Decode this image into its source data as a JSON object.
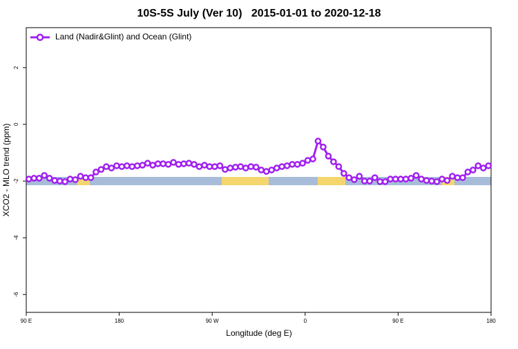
{
  "chart_data": {
    "type": "line",
    "title": "10S-5S July (Ver 10)   2015-01-01 to 2020-12-18",
    "x_label": "Longitude (deg E)",
    "y_label": "XCO2 - MLO trend (ppm)",
    "x": [
      92.5,
      97.5,
      102.5,
      107.5,
      112.5,
      117.5,
      122.5,
      127.5,
      132.5,
      137.5,
      142.5,
      147.5,
      152.5,
      157.5,
      162.5,
      167.5,
      172.5,
      177.5,
      182.5,
      187.5,
      192.5,
      197.5,
      202.5,
      207.5,
      212.5,
      217.5,
      222.5,
      227.5,
      232.5,
      237.5,
      242.5,
      247.5,
      252.5,
      257.5,
      262.5,
      267.5,
      272.5,
      277.5,
      282.5,
      287.5,
      292.5,
      297.5,
      302.5,
      307.5,
      312.5,
      317.5,
      322.5,
      327.5,
      332.5,
      337.5,
      342.5,
      347.5,
      352.5,
      357.5,
      362.5,
      367.5,
      372.5,
      377.5,
      382.5,
      387.5,
      392.5,
      397.5,
      402.5,
      407.5,
      412.5,
      417.5,
      422.5,
      427.5,
      432.5,
      437.5,
      442.5,
      447.5,
      452.5,
      457.5,
      462.5,
      467.5,
      472.5,
      477.5,
      482.5,
      487.5,
      492.5,
      497.5,
      502.5,
      507.5,
      512.5,
      517.5,
      522.5,
      527.5,
      532.5,
      537.5
    ],
    "series": [
      {
        "name": "Land (Nadir&Glint) and Ocean (Glint)",
        "color": "#a020f0",
        "values": [
          -1.93,
          -1.9,
          -1.9,
          -1.8,
          -1.9,
          -1.98,
          -2.0,
          -2.02,
          -1.93,
          -1.95,
          -1.83,
          -1.88,
          -1.88,
          -1.68,
          -1.59,
          -1.49,
          -1.54,
          -1.46,
          -1.49,
          -1.46,
          -1.49,
          -1.46,
          -1.44,
          -1.37,
          -1.44,
          -1.39,
          -1.39,
          -1.41,
          -1.34,
          -1.41,
          -1.39,
          -1.37,
          -1.41,
          -1.49,
          -1.44,
          -1.49,
          -1.49,
          -1.46,
          -1.59,
          -1.54,
          -1.51,
          -1.49,
          -1.54,
          -1.49,
          -1.51,
          -1.61,
          -1.66,
          -1.61,
          -1.54,
          -1.49,
          -1.46,
          -1.41,
          -1.41,
          -1.37,
          -1.27,
          -1.22,
          -0.59,
          -0.8,
          -1.12,
          -1.32,
          -1.49,
          -1.73,
          -1.88,
          -1.95,
          -1.83,
          -2.0,
          -2.0,
          -1.88,
          -2.02,
          -2.02,
          -1.93,
          -1.93,
          -1.93,
          -1.93,
          -1.9,
          -1.8,
          -1.93,
          -1.98,
          -2.0,
          -2.02,
          -1.93,
          -1.98,
          -1.83,
          -1.88,
          -1.88,
          -1.68,
          -1.61,
          -1.46,
          -1.54,
          -1.46
        ]
      }
    ],
    "xlim": [
      90,
      540
    ],
    "xticks": [
      {
        "value": 90,
        "label": "90 E"
      },
      180,
      {
        "value": 270,
        "label": "90 W"
      },
      {
        "value": 360,
        "label": "0"
      },
      {
        "value": 450,
        "label": "90 E"
      },
      {
        "value": 540,
        "label": "180"
      }
    ],
    "ylim": [
      -6.63,
      3.41
    ],
    "yticks": [
      2,
      0,
      -2,
      -4,
      -6
    ],
    "legend": "top-left"
  }
}
